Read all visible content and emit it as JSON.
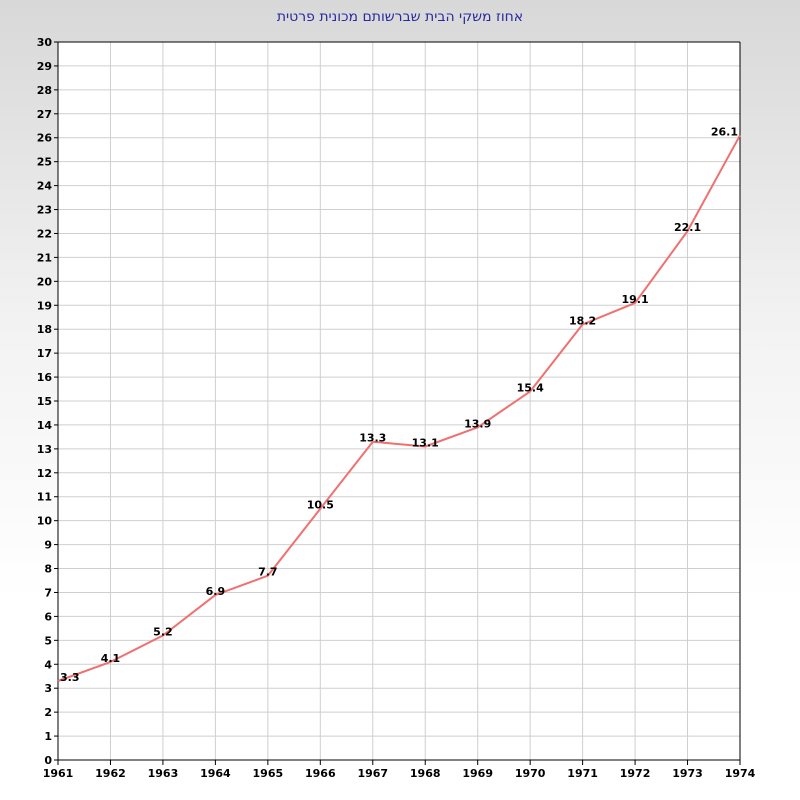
{
  "chart_data": {
    "type": "line",
    "title": "אחוז משקי הבית שברשותם מכונית פרטית",
    "xlabel": "",
    "ylabel": "",
    "x": [
      1961,
      1962,
      1963,
      1964,
      1965,
      1966,
      1967,
      1968,
      1969,
      1970,
      1971,
      1972,
      1973,
      1974
    ],
    "series": [
      {
        "values": [
          3.3,
          4.1,
          5.2,
          6.9,
          7.7,
          10.5,
          13.3,
          13.1,
          13.9,
          15.4,
          18.2,
          19.1,
          22.1,
          26.1
        ]
      }
    ],
    "xlim": [
      1961,
      1974
    ],
    "ylim": [
      0,
      30
    ],
    "ytick_step": 1,
    "grid": true,
    "legend": "none",
    "line_color": "#f07070"
  }
}
